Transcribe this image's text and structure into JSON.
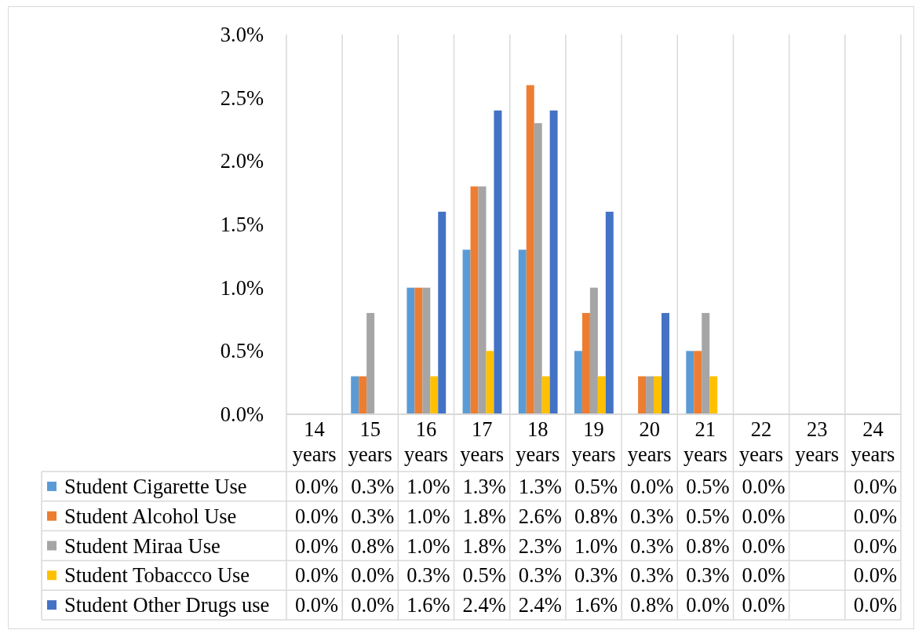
{
  "chart_data": {
    "type": "bar",
    "categories": [
      "14 years",
      "15 years",
      "16 years",
      "17 years",
      "18 years",
      "19 years",
      "20 years",
      "21 years",
      "22 years",
      "23 years",
      "24 years"
    ],
    "series": [
      {
        "name": "Student Cigarette Use",
        "color": "#5b9bd5",
        "values": [
          0.0,
          0.3,
          1.0,
          1.3,
          1.3,
          0.5,
          0.0,
          0.5,
          0.0,
          null,
          0.0
        ],
        "value_labels": [
          "0.0%",
          "0.3%",
          "1.0%",
          "1.3%",
          "1.3%",
          "0.5%",
          "0.0%",
          "0.5%",
          "0.0%",
          null,
          "0.0%"
        ]
      },
      {
        "name": "Student Alcohol Use",
        "color": "#ed7d31",
        "values": [
          0.0,
          0.3,
          1.0,
          1.8,
          2.6,
          0.8,
          0.3,
          0.5,
          0.0,
          null,
          0.0
        ],
        "value_labels": [
          "0.0%",
          "0.3%",
          "1.0%",
          "1.8%",
          "2.6%",
          "0.8%",
          "0.3%",
          "0.5%",
          "0.0%",
          null,
          "0.0%"
        ]
      },
      {
        "name": "Student Miraa Use",
        "color": "#a5a5a5",
        "values": [
          0.0,
          0.8,
          1.0,
          1.8,
          2.3,
          1.0,
          0.3,
          0.8,
          0.0,
          null,
          0.0
        ],
        "value_labels": [
          "0.0%",
          "0.8%",
          "1.0%",
          "1.8%",
          "2.3%",
          "1.0%",
          "0.3%",
          "0.8%",
          "0.0%",
          null,
          "0.0%"
        ]
      },
      {
        "name": "Student Tobaccco Use",
        "color": "#ffc000",
        "values": [
          0.0,
          0.0,
          0.3,
          0.5,
          0.3,
          0.3,
          0.3,
          0.3,
          0.0,
          null,
          0.0
        ],
        "value_labels": [
          "0.0%",
          "0.0%",
          "0.3%",
          "0.5%",
          "0.3%",
          "0.3%",
          "0.3%",
          "0.3%",
          "0.0%",
          null,
          "0.0%"
        ]
      },
      {
        "name": "Student Other Drugs use",
        "color": "#4472c4",
        "values": [
          0.0,
          0.0,
          1.6,
          2.4,
          2.4,
          1.6,
          0.8,
          0.0,
          0.0,
          null,
          0.0
        ],
        "value_labels": [
          "0.0%",
          "0.0%",
          "1.6%",
          "2.4%",
          "2.4%",
          "1.6%",
          "0.8%",
          "0.0%",
          "0.0%",
          null,
          "0.0%"
        ]
      }
    ],
    "ylim": [
      0,
      3
    ],
    "yticks": [
      {
        "value": 0,
        "label": "0.0%"
      },
      {
        "value": 0.5,
        "label": "0.5%"
      },
      {
        "value": 1,
        "label": "1.0%"
      },
      {
        "value": 1.5,
        "label": "1.5%"
      },
      {
        "value": 2,
        "label": "2.0%"
      },
      {
        "value": 2.5,
        "label": "2.5%"
      },
      {
        "value": 3,
        "label": "3.0%"
      }
    ],
    "grid": "x",
    "legend": "bottom"
  }
}
